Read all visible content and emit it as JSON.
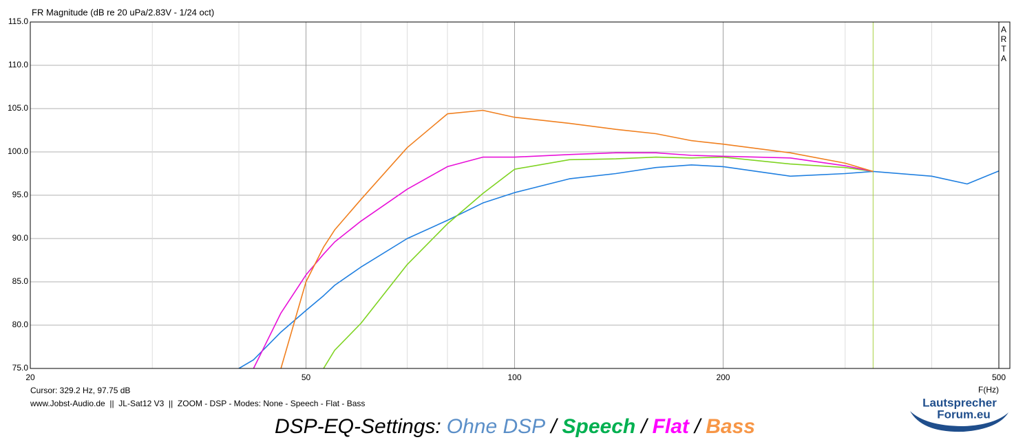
{
  "chart_data": {
    "type": "line",
    "title": "FR Magnitude (dB re 20 uPa/2.83V - 1/24 oct)",
    "side_label": "ARTA",
    "x_label": "F(Hz)",
    "log_x": true,
    "grid": true,
    "x": [
      35,
      40,
      42,
      46,
      50,
      53,
      55,
      60,
      70,
      80,
      90,
      100,
      120,
      140,
      160,
      180,
      200,
      250,
      300,
      329.2,
      400,
      450,
      500
    ],
    "series": [
      {
        "name": "Ohne DSP",
        "color": "#1f7fe0",
        "label_color": "#5b8fc8",
        "values": [
          null,
          75,
          76.0,
          79.2,
          81.7,
          83.4,
          84.6,
          86.7,
          90.0,
          92.1,
          94.1,
          95.3,
          96.9,
          97.5,
          98.2,
          98.5,
          98.3,
          97.2,
          97.5,
          97.75,
          97.2,
          96.3,
          97.8
        ]
      },
      {
        "name": "Speech",
        "color": "#7ed321",
        "label_color": "#00b050",
        "values": [
          null,
          null,
          null,
          null,
          null,
          75,
          77.1,
          80.2,
          87.0,
          91.7,
          95.2,
          98.0,
          99.1,
          99.2,
          99.4,
          99.3,
          99.4,
          98.6,
          98.2,
          97.75,
          null,
          null,
          null
        ]
      },
      {
        "name": "Flat",
        "color": "#e810d8",
        "label_color": "#ff00ff",
        "values": [
          null,
          null,
          75,
          81.4,
          85.8,
          88.2,
          89.6,
          92.0,
          95.7,
          98.3,
          99.4,
          99.4,
          99.7,
          99.9,
          99.9,
          99.6,
          99.5,
          99.3,
          98.4,
          97.75,
          null,
          null,
          null
        ]
      },
      {
        "name": "Bass",
        "color": "#f07f1e",
        "label_color": "#f79646",
        "values": [
          null,
          null,
          null,
          75,
          85.0,
          89.0,
          91.0,
          94.5,
          100.5,
          104.4,
          104.8,
          104.0,
          103.3,
          102.6,
          102.1,
          101.3,
          100.9,
          99.9,
          98.7,
          97.75,
          null,
          null,
          null
        ]
      }
    ],
    "xlim": [
      20,
      500
    ],
    "xticks": [
      20,
      50,
      100,
      200,
      500
    ],
    "x_minor_grid": [
      30,
      40,
      60,
      70,
      80,
      90,
      300,
      400
    ],
    "ylim": [
      75,
      115
    ],
    "yticks": [
      {
        "value": 75,
        "label": "75.0"
      },
      {
        "value": 80,
        "label": "80.0"
      },
      {
        "value": 85,
        "label": "85.0"
      },
      {
        "value": 90,
        "label": "90.0"
      },
      {
        "value": 95,
        "label": "95.0"
      },
      {
        "value": 100,
        "label": "100.0"
      },
      {
        "value": 105,
        "label": "105.0"
      },
      {
        "value": 110,
        "label": "110.0"
      },
      {
        "value": 115,
        "label": "115.0"
      }
    ],
    "cursor": {
      "x": 329.2,
      "color": "#a8d040",
      "label": "Cursor: 329.2 Hz, 97.75 dB"
    },
    "footer": "www.Jobst-Audio.de  ||  JL-Sat12 V3  ||  ZOOM - DSP - Modes: None - Speech - Flat - Bass",
    "caption": "DSP-EQ-Settings:",
    "caption_separator": "/",
    "logo": [
      "Lautsprecher",
      "Forum.eu"
    ]
  }
}
